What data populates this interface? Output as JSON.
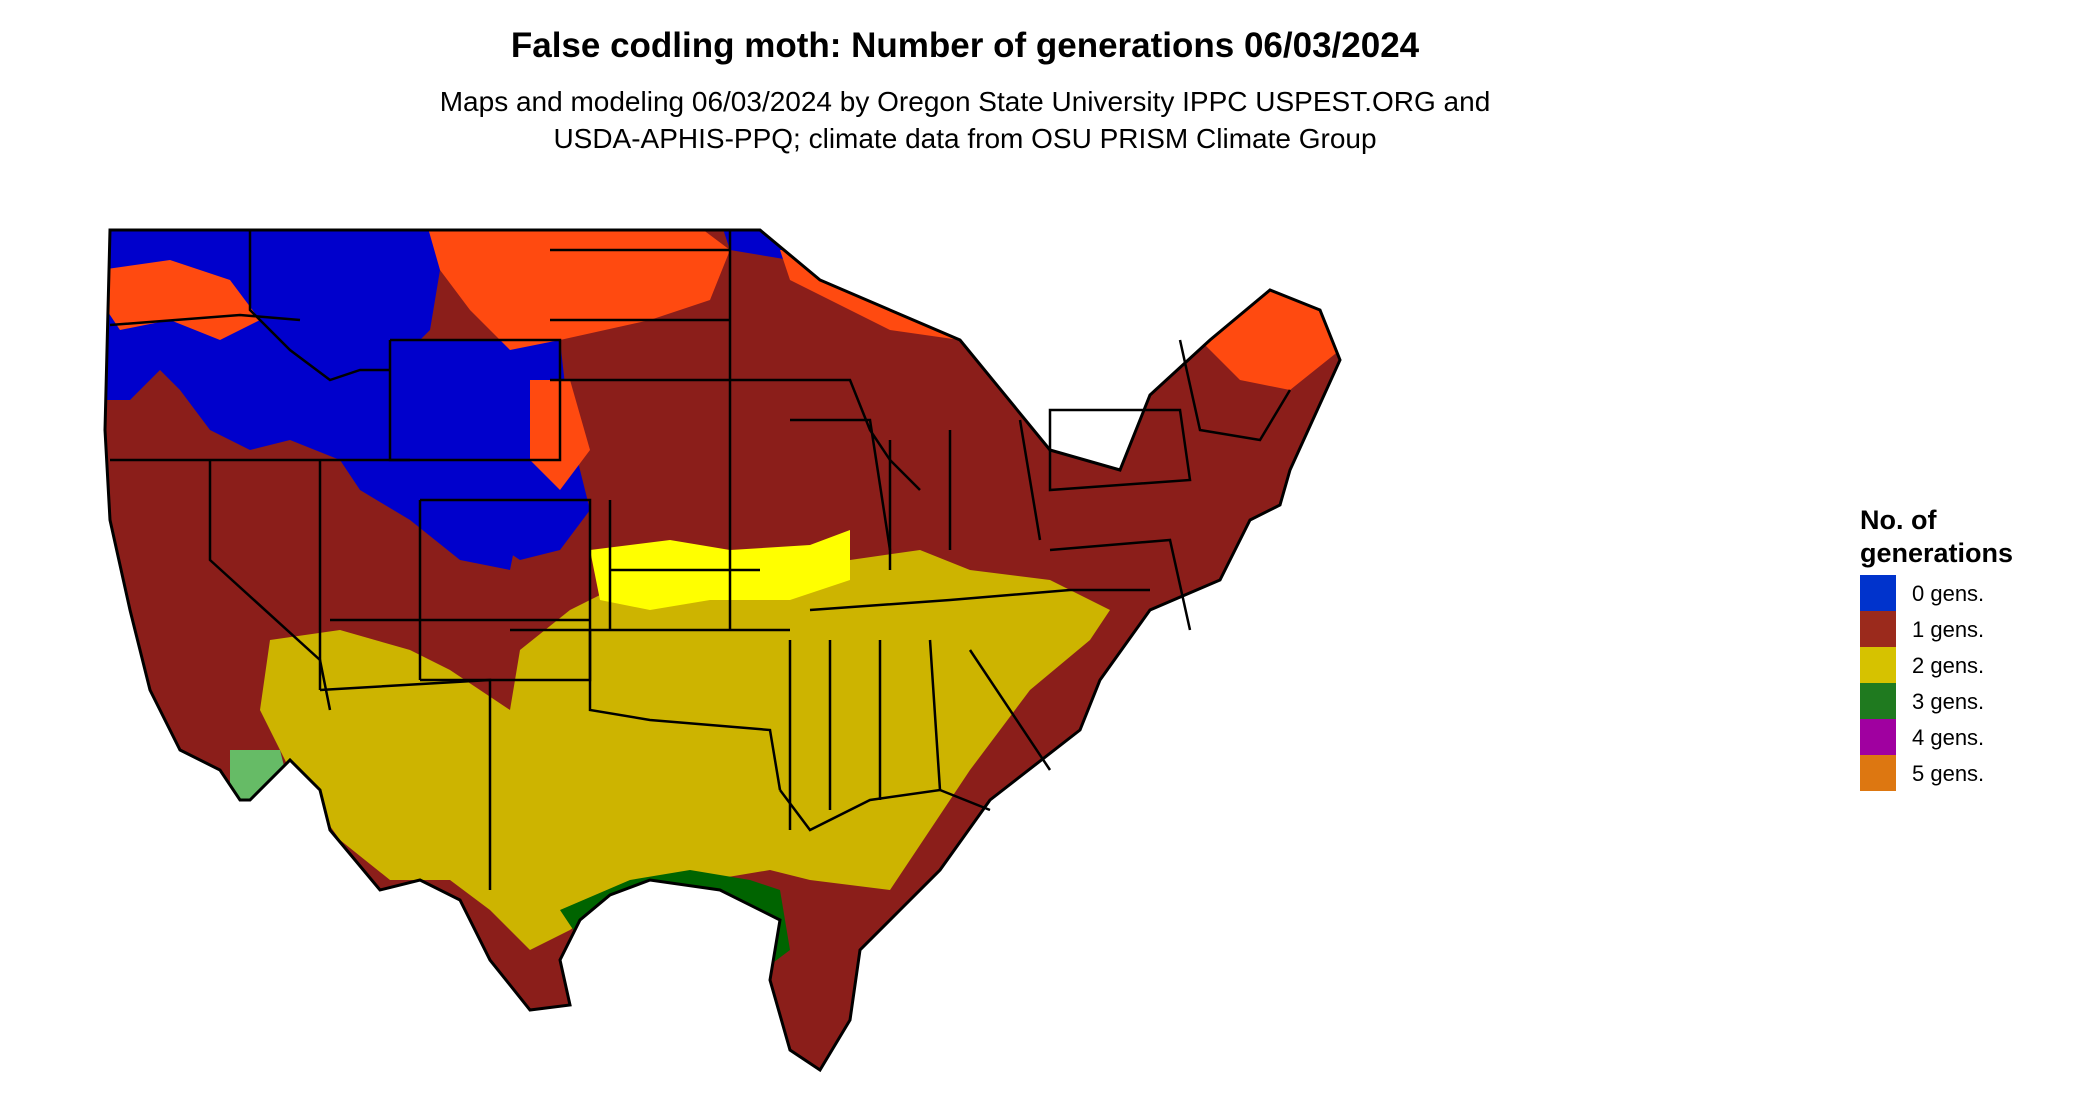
{
  "header": {
    "title": "False codling moth: Number of generations 06/03/2024",
    "subtitle_line1": "Maps and modeling 06/03/2024 by Oregon State University IPPC USPEST.ORG and",
    "subtitle_line2": "USDA-APHIS-PPQ; climate data from OSU PRISM Climate Group"
  },
  "legend": {
    "title_line1": "No. of",
    "title_line2": "generations",
    "items": [
      {
        "label": "0 gens.",
        "color": "#0033cc"
      },
      {
        "label": "1 gens.",
        "color": "#9b2a1c"
      },
      {
        "label": "2 gens.",
        "color": "#d6c200"
      },
      {
        "label": "3 gens.",
        "color": "#1f7a1f"
      },
      {
        "label": "4 gens.",
        "color": "#a000a0"
      },
      {
        "label": "5 gens.",
        "color": "#dd7711"
      }
    ]
  },
  "map_colors": {
    "zero": "#0000cc",
    "one_dark": "#8b1e1a",
    "one_light": "#ff4a10",
    "two": "#cdb400",
    "two_light": "#ffff00",
    "three": "#006400",
    "three_light": "#66bb66",
    "four": "#a000a0",
    "four_light": "#ff66ff",
    "five": "#dd7711"
  }
}
